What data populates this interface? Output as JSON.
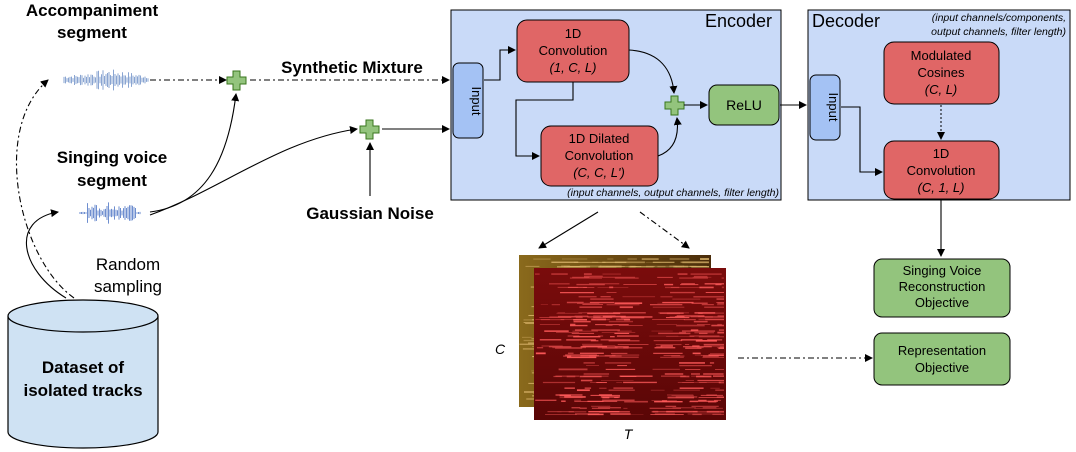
{
  "labels": {
    "accompaniment_line1": "Accompaniment",
    "accompaniment_line2": "segment",
    "singing_line1": "Singing voice",
    "singing_line2": "segment",
    "random_line1": "Random",
    "random_line2": "sampling",
    "dataset_line1": "Dataset of",
    "dataset_line2": "isolated tracks",
    "synthetic_mixture": "Synthetic Mixture",
    "gaussian_noise": "Gaussian Noise"
  },
  "encoder": {
    "title": "Encoder",
    "input": "Input",
    "conv_line1": "1D",
    "conv_line2": "Convolution",
    "conv_line3": "(1, C, L)",
    "dilated_line1": "1D Dilated",
    "dilated_line2": "Convolution",
    "dilated_line3": "(C, C, L')",
    "relu": "ReLU",
    "params_note": "(input channels, output channels, filter length)"
  },
  "decoder": {
    "title": "Decoder",
    "note_line1": "(input channels/components,",
    "note_line2": "output channels, filter length)",
    "input": "Input",
    "cos_line1": "Modulated",
    "cos_line2": "Cosines",
    "cos_line3": "(C, L)",
    "conv_line1": "1D",
    "conv_line2": "Convolution",
    "conv_line3": "(C, 1, L)"
  },
  "objectives": {
    "singing_line1": "Singing Voice",
    "singing_line2": "Reconstruction",
    "singing_line3": "Objective",
    "repr_line1": "Representation",
    "repr_line2": "Objective"
  },
  "spectrogram": {
    "y_axis": "C",
    "x_axis": "T"
  },
  "colors": {
    "panel_fill": "#c9daf8",
    "red_box": "#e06666",
    "green_box": "#93c47d",
    "input_box": "#a4c2f4",
    "plus_fill": "#93c47d",
    "dataset_fill": "#cfe2f3"
  }
}
